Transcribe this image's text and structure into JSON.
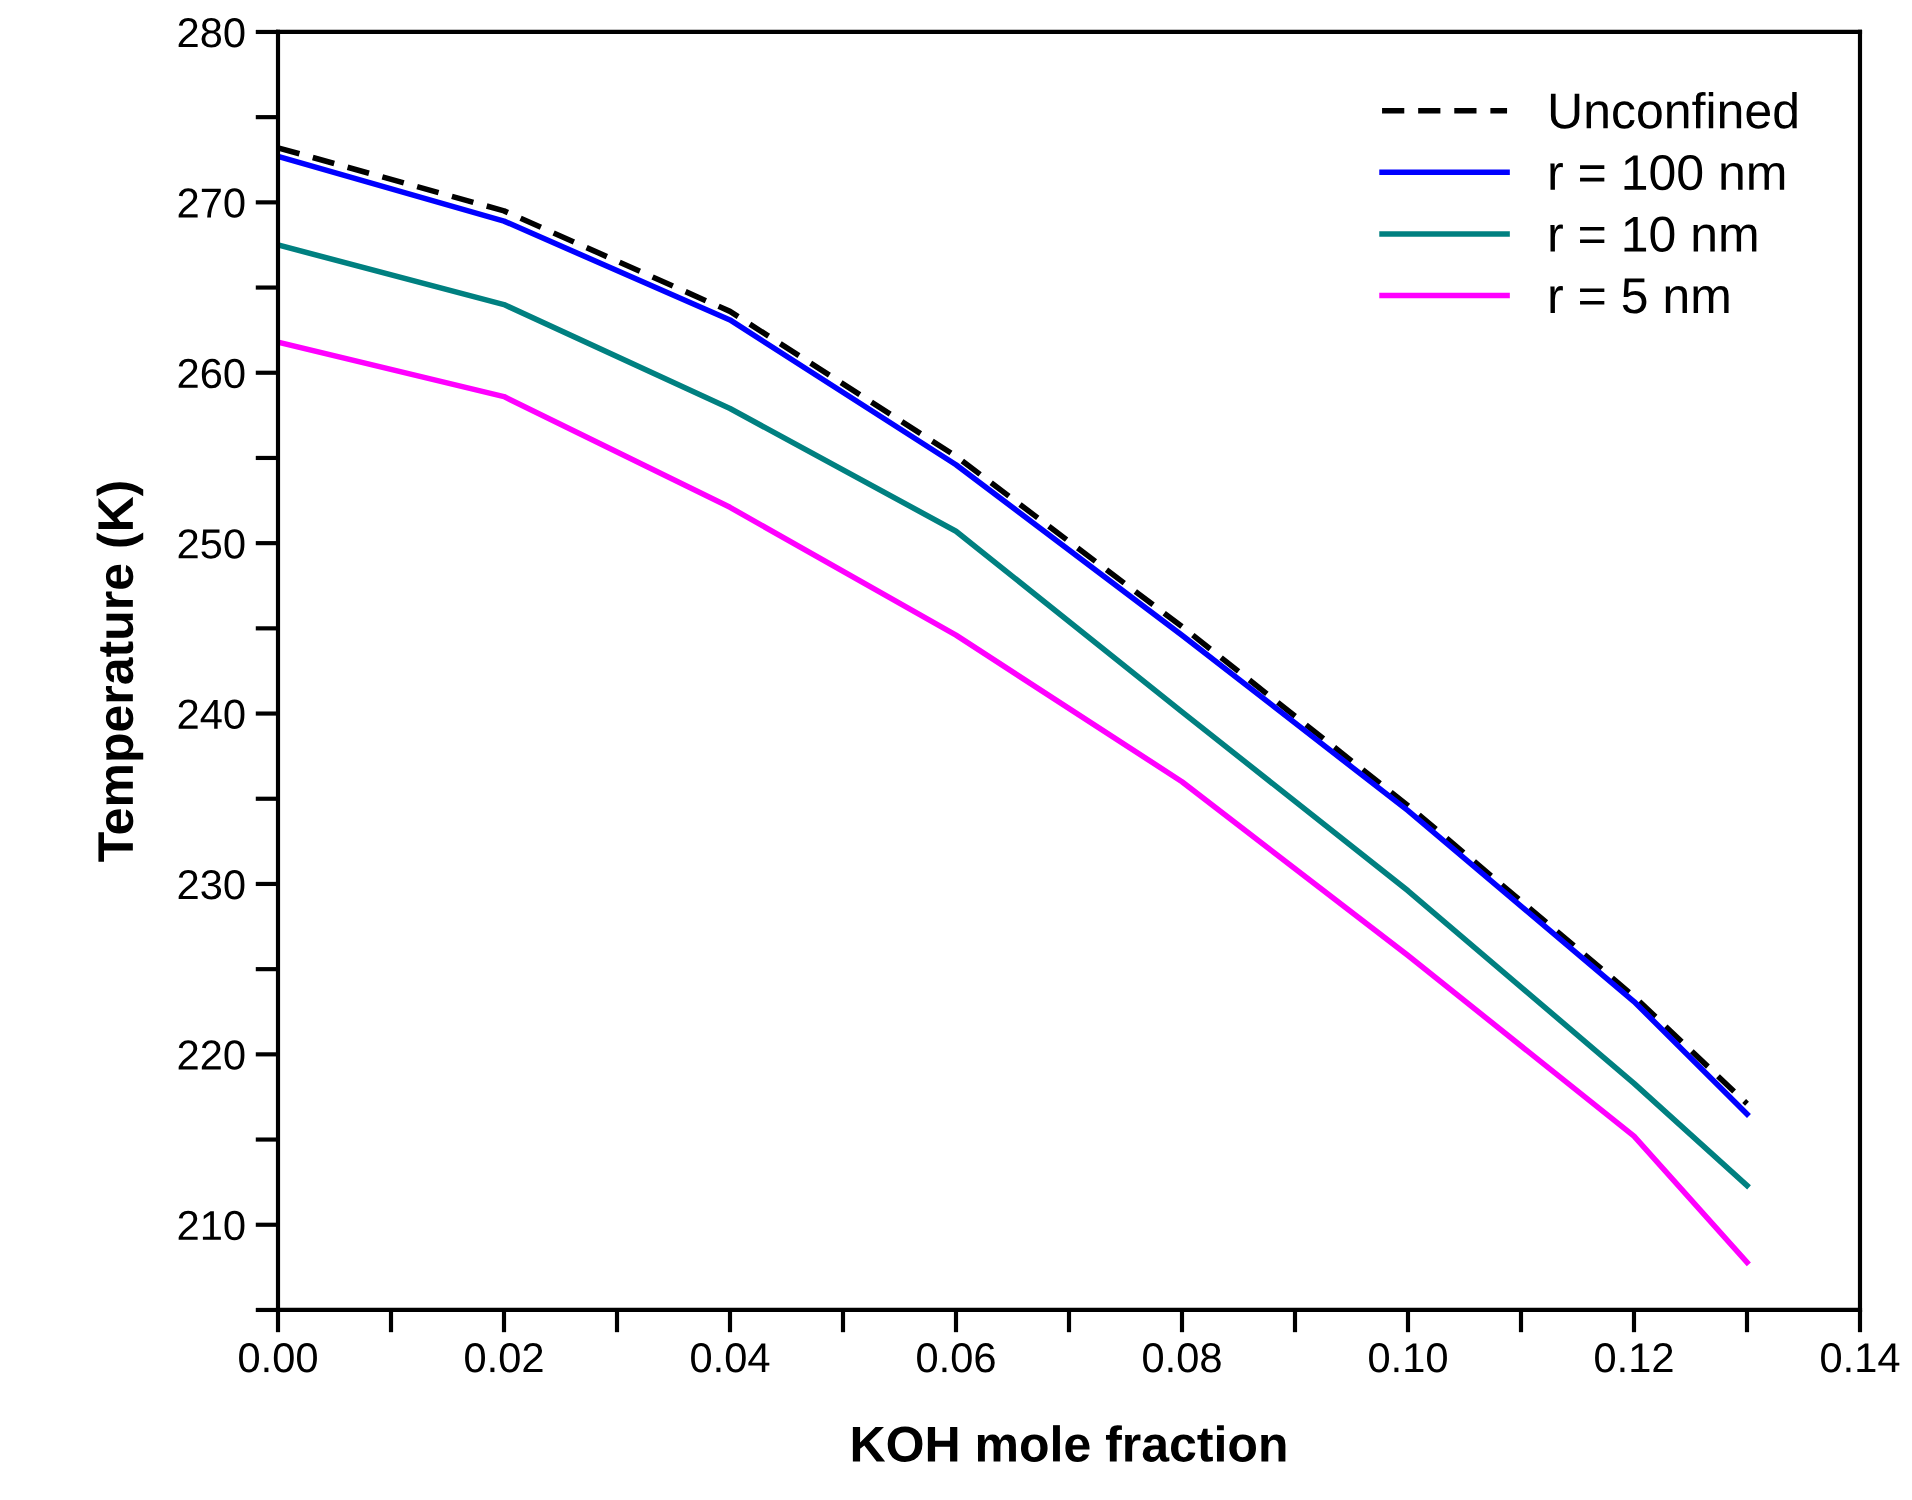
{
  "chart_data": {
    "type": "line",
    "xlabel": "KOH mole fraction",
    "ylabel": "Temperature (K)",
    "x": [
      0,
      0.02,
      0.04,
      0.06,
      0.08,
      0.1,
      0.12,
      0.13
    ],
    "series": [
      {
        "name": "Unconfined",
        "color": "#000000",
        "line_style": "dashed",
        "values": [
          273.2,
          269.5,
          263.6,
          255.1,
          245.1,
          234.6,
          223.4,
          217.1
        ]
      },
      {
        "name": "r = 100 nm",
        "color": "#0000ff",
        "values": [
          272.7,
          268.9,
          263.1,
          254.6,
          244.6,
          234.3,
          223.1,
          216.5
        ]
      },
      {
        "name": "r = 10 nm",
        "color": "#008080",
        "values": [
          267.5,
          264.0,
          257.9,
          250.7,
          240.1,
          229.6,
          218.3,
          212.3
        ]
      },
      {
        "name": "r = 5 nm",
        "color": "#ff00ff",
        "values": [
          261.8,
          258.6,
          252.1,
          244.6,
          236.0,
          225.8,
          215.2,
          207.8
        ]
      }
    ],
    "xlim": [
      0,
      0.14
    ],
    "xticks": [
      {
        "value": 0,
        "label": "0.00"
      },
      {
        "value": 0.01,
        "label": null
      },
      {
        "value": 0.02,
        "label": "0.02"
      },
      {
        "value": 0.03,
        "label": null
      },
      {
        "value": 0.04,
        "label": "0.04"
      },
      {
        "value": 0.05,
        "label": null
      },
      {
        "value": 0.06,
        "label": "0.06"
      },
      {
        "value": 0.07,
        "label": null
      },
      {
        "value": 0.08,
        "label": "0.08"
      },
      {
        "value": 0.09,
        "label": null
      },
      {
        "value": 0.1,
        "label": "0.10"
      },
      {
        "value": 0.11,
        "label": null
      },
      {
        "value": 0.12,
        "label": "0.12"
      },
      {
        "value": 0.13,
        "label": null
      },
      {
        "value": 0.14,
        "label": "0.14"
      }
    ],
    "ylim": [
      205,
      280
    ],
    "yticks": [
      {
        "value": 205,
        "label": null
      },
      210,
      {
        "value": 215,
        "label": null
      },
      220,
      {
        "value": 225,
        "label": null
      },
      230,
      {
        "value": 235,
        "label": null
      },
      240,
      {
        "value": 245,
        "label": null
      },
      250,
      {
        "value": 255,
        "label": null
      },
      260,
      {
        "value": 265,
        "label": null
      },
      270,
      {
        "value": 275,
        "label": null
      },
      280
    ],
    "grid": false,
    "legend": "top right",
    "line_style": "solid",
    "marker": "none"
  }
}
